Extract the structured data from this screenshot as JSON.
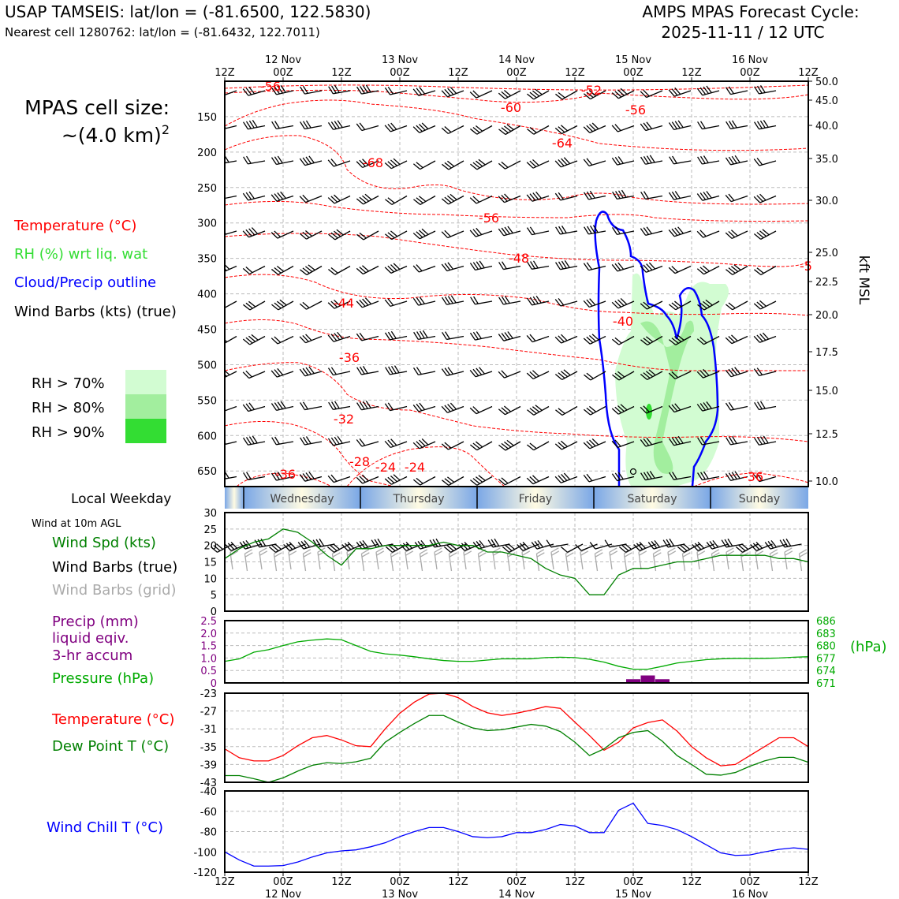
{
  "header": {
    "station": "USAP TAMSEIS: lat/lon = (-81.6500, 122.5830)",
    "nearest": "Nearest cell 1280762: lat/lon = (-81.6432, 122.7011)",
    "cycle_line1": "AMPS MPAS Forecast Cycle:",
    "cycle_line2": "2025-11-11 / 12 UTC"
  },
  "cell_size": {
    "line1": "MPAS cell size:",
    "line2": "~(4.0 km)",
    "sup": "2"
  },
  "legend_main": {
    "temp": "Temperature (°C)",
    "rh": "RH (%) wrt liq. wat",
    "cloud": "Cloud/Precip outline",
    "barbs": "Wind Barbs (kts) (true)"
  },
  "rh_legend": [
    "RH > 70%",
    "RH > 80%",
    "RH > 90%"
  ],
  "weekday": {
    "title": "Local Weekday",
    "days": [
      "Wednesday",
      "Thursday",
      "Friday",
      "Saturday",
      "Sunday"
    ]
  },
  "wind_panel": {
    "title": "Wind at 10m AGL",
    "spd": "Wind Spd (kts)",
    "true": "Wind Barbs (true)",
    "grid": "Wind Barbs (grid)"
  },
  "precip_panel": {
    "line1": "Precip (mm)",
    "line2": "liquid eqiv.",
    "line3": "3-hr accum",
    "pressure": "Pressure (hPa)",
    "right_unit": "(hPa)"
  },
  "temp_panel": {
    "temp": "Temperature (°C)",
    "dew": "Dew Point T (°C)"
  },
  "chill_panel": {
    "label": "Wind Chill T (°C)"
  },
  "colors": {
    "temp": "#ff0000",
    "rh_text": "#33dd33",
    "cloud": "#0000ff",
    "wind": "#008000",
    "grid_barb": "#aaaaaa",
    "precip": "#800080",
    "pressure": "#00aa00",
    "chill": "#0000ff",
    "rh70": "#d2fcd2",
    "rh80": "#a2ee9e",
    "rh90": "#33dd33"
  },
  "chart_data": [
    {
      "type": "line",
      "name": "time-height",
      "x_time_ticks_top": [
        "12Z",
        "00Z",
        "12Z",
        "00Z",
        "12Z",
        "00Z",
        "12Z",
        "00Z",
        "12Z",
        "00Z",
        "12Z"
      ],
      "date_labels": [
        "12 Nov",
        "13 Nov",
        "14 Nov",
        "15 Nov",
        "16 Nov"
      ],
      "y_pressure_ticks": [
        150,
        200,
        250,
        300,
        350,
        400,
        450,
        500,
        550,
        600,
        650
      ],
      "y_kft_ticks": [
        "50.0",
        "45.0",
        "40.0",
        "35.0",
        "30.0",
        "25.0",
        "22.5",
        "20.0",
        "17.5",
        "15.0",
        "12.5",
        "10.0"
      ],
      "right_axis_label": "kft MSL",
      "temp_contour_labels": [
        "-56",
        "-52",
        "-60",
        "-56",
        "-64",
        "-68",
        "-56",
        "-48",
        "-44",
        "-40",
        "-36",
        "-32",
        "-28",
        "-24",
        "-24",
        "-36",
        "-36",
        "-5"
      ]
    },
    {
      "type": "line",
      "name": "wind-10m",
      "ylim": [
        0,
        30
      ],
      "yticks": [
        0,
        5,
        10,
        15,
        20,
        25,
        30
      ],
      "series": [
        {
          "name": "Wind Spd (kts)",
          "x_hours": [
            0,
            3,
            6,
            9,
            12,
            15,
            18,
            21,
            24,
            27,
            30,
            33,
            36,
            39,
            42,
            45,
            48,
            51,
            54,
            57,
            60,
            63,
            66,
            69,
            72,
            75,
            78,
            81,
            84,
            87,
            90,
            93,
            96,
            99,
            102,
            105,
            108,
            111,
            114,
            117,
            120
          ],
          "values": [
            16,
            19,
            21,
            22,
            25,
            24,
            21,
            17,
            14,
            19,
            19,
            20,
            20,
            20,
            20,
            21,
            20,
            20,
            18,
            18,
            17,
            16,
            13,
            11,
            10,
            5,
            5,
            11,
            13,
            13,
            14,
            15,
            15,
            16,
            17,
            17,
            17,
            17,
            16,
            16,
            15
          ]
        }
      ]
    },
    {
      "type": "line",
      "name": "precip-pressure",
      "precip_ylim": [
        0,
        2.5
      ],
      "precip_ticks": [
        "2.5",
        "2.0",
        "1.5",
        "1.0",
        "0.5",
        "0"
      ],
      "pressure_ylim": [
        671,
        686
      ],
      "pressure_ticks": [
        "686",
        "683",
        "680",
        "677",
        "674",
        "671"
      ],
      "series": [
        {
          "name": "Pressure (hPa)",
          "x_hours": [
            0,
            3,
            6,
            9,
            12,
            15,
            18,
            21,
            24,
            27,
            30,
            33,
            36,
            39,
            42,
            45,
            48,
            51,
            54,
            57,
            60,
            63,
            66,
            69,
            72,
            75,
            78,
            81,
            84,
            87,
            90,
            93,
            96,
            99,
            102,
            105,
            108,
            111,
            114,
            117,
            120
          ],
          "values": [
            676.2,
            676.8,
            678.4,
            679.0,
            680.0,
            680.9,
            681.3,
            681.6,
            681.4,
            680.0,
            678.6,
            678.0,
            677.7,
            677.3,
            676.8,
            676.4,
            676.2,
            676.2,
            676.5,
            676.8,
            676.8,
            676.8,
            677.1,
            677.2,
            677.1,
            676.7,
            676.0,
            675.0,
            674.3,
            674.3,
            675.0,
            675.8,
            676.2,
            676.6,
            676.8,
            676.9,
            676.9,
            676.9,
            677.0,
            677.2,
            677.3
          ]
        },
        {
          "name": "Precip (mm)",
          "x_hours": [
            84,
            87,
            90
          ],
          "values": [
            0.15,
            0.3,
            0.15
          ]
        }
      ]
    },
    {
      "type": "line",
      "name": "temperature",
      "ylim": [
        -43,
        -23
      ],
      "yticks": [
        -23,
        -27,
        -31,
        -35,
        -39,
        -43
      ],
      "series": [
        {
          "name": "Temperature (°C)",
          "x_hours": [
            0,
            3,
            6,
            9,
            12,
            15,
            18,
            21,
            24,
            27,
            30,
            33,
            36,
            39,
            42,
            45,
            48,
            51,
            54,
            57,
            60,
            63,
            66,
            69,
            72,
            75,
            78,
            81,
            84,
            87,
            90,
            93,
            96,
            99,
            102,
            105,
            108,
            111,
            114,
            117,
            120
          ],
          "values": [
            -35.5,
            -37.5,
            -38.2,
            -38.2,
            -37,
            -34.8,
            -33.0,
            -32.5,
            -33.5,
            -34.8,
            -35.0,
            -31.0,
            -27.5,
            -25.0,
            -23.2,
            -23.0,
            -24.0,
            -26.0,
            -27.4,
            -28.0,
            -27.5,
            -26.8,
            -26.0,
            -26.4,
            -29.5,
            -32.5,
            -35.8,
            -34.0,
            -30.8,
            -29.6,
            -29.0,
            -31.5,
            -35.0,
            -37.5,
            -39.3,
            -39.0,
            -37.0,
            -35.0,
            -33.0,
            -33.0,
            -35.0
          ]
        },
        {
          "name": "Dew Point T (°C)",
          "x_hours": [
            0,
            3,
            6,
            9,
            12,
            15,
            18,
            21,
            24,
            27,
            30,
            33,
            36,
            39,
            42,
            45,
            48,
            51,
            54,
            57,
            60,
            63,
            66,
            69,
            72,
            75,
            78,
            81,
            84,
            87,
            90,
            93,
            96,
            99,
            102,
            105,
            108,
            111,
            114,
            117,
            120
          ],
          "values": [
            -41.5,
            -41.5,
            -42.2,
            -43.0,
            -42.0,
            -40.5,
            -39.2,
            -38.6,
            -38.8,
            -38.4,
            -37.6,
            -34.0,
            -31.8,
            -29.8,
            -28.0,
            -28.0,
            -29.5,
            -30.8,
            -31.4,
            -31.2,
            -30.6,
            -30.0,
            -30.4,
            -31.6,
            -34.0,
            -37.0,
            -35.5,
            -33.0,
            -31.8,
            -31.4,
            -33.8,
            -37.0,
            -39.0,
            -41.2,
            -41.4,
            -40.8,
            -39.4,
            -38.2,
            -37.4,
            -37.4,
            -38.5
          ]
        }
      ]
    },
    {
      "type": "line",
      "name": "wind-chill",
      "ylim": [
        -120,
        -40
      ],
      "yticks": [
        -40,
        -60,
        -80,
        -100,
        -120
      ],
      "series": [
        {
          "name": "Wind Chill T (°C)",
          "x_hours": [
            0,
            3,
            6,
            9,
            12,
            15,
            18,
            21,
            24,
            27,
            30,
            33,
            36,
            39,
            42,
            45,
            48,
            51,
            54,
            57,
            60,
            63,
            66,
            69,
            72,
            75,
            78,
            81,
            84,
            87,
            90,
            93,
            96,
            99,
            102,
            105,
            108,
            111,
            114,
            117,
            120
          ],
          "values": [
            -100,
            -108,
            -114,
            -114,
            -113.5,
            -110,
            -105,
            -101,
            -99,
            -98,
            -95,
            -91,
            -85,
            -80,
            -76,
            -76,
            -80,
            -85,
            -86,
            -85,
            -81,
            -81,
            -78,
            -73,
            -74.5,
            -81,
            -81,
            -59,
            -52,
            -72,
            -74,
            -78,
            -85,
            -93,
            -101,
            -103.5,
            -103,
            -100,
            -97.5,
            -96,
            -97.5
          ]
        }
      ]
    }
  ]
}
